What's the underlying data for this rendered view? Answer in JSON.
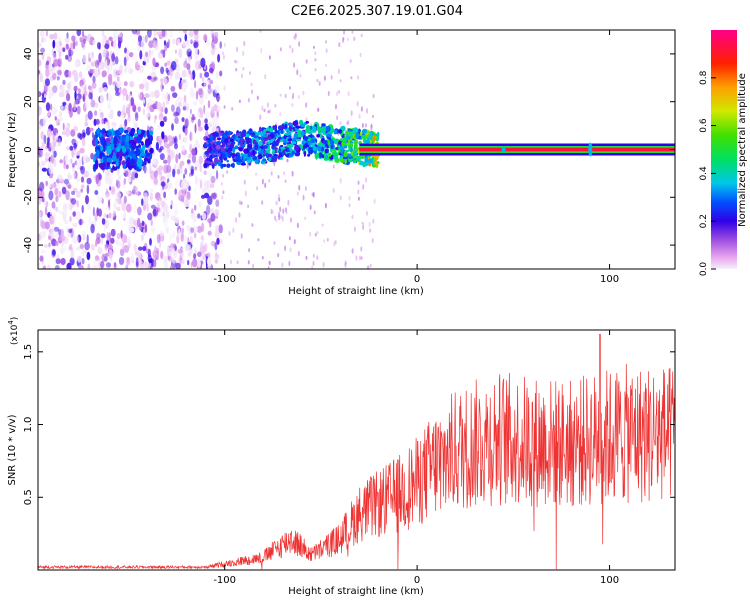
{
  "title": "C2E6.2025.307.19.01.G04",
  "chart_data": [
    {
      "type": "heatmap",
      "name": "spectrogram",
      "xlabel": "Height of straight line (km)",
      "ylabel": "Frequency (Hz)",
      "xlim": [
        -197,
        134
      ],
      "ylim": [
        -50,
        50
      ],
      "xticks": [
        -100,
        0,
        100
      ],
      "yticks": [
        -40,
        -20,
        0,
        20,
        40
      ],
      "colorbar": {
        "label": "Normalized spectral amplitude",
        "range": [
          0,
          1
        ],
        "ticks": [
          0.0,
          0.2,
          0.4,
          0.6,
          0.8
        ]
      },
      "signal": {
        "description_points": [
          {
            "x": -160,
            "y": 0,
            "amp": 0.2
          },
          {
            "x": -100,
            "y": 0,
            "amp": 0.35
          },
          {
            "x": -80,
            "y": 1.5,
            "amp": 0.45
          },
          {
            "x": -60,
            "y": 5,
            "amp": 0.5
          },
          {
            "x": -40,
            "y": 2,
            "amp": 0.6
          },
          {
            "x": -20,
            "y": 0,
            "amp": 0.95
          },
          {
            "x": 0,
            "y": 0,
            "amp": 0.95
          },
          {
            "x": 90,
            "y": 0,
            "amp": 0.95
          },
          {
            "x": 134,
            "y": 0,
            "amp": 0.95
          }
        ]
      }
    },
    {
      "type": "line",
      "name": "snr",
      "xlabel": "Height of straight line (km)",
      "ylabel": "SNR (10 * v/v)",
      "multiplier_label": "(x10",
      "multiplier_exp": "4",
      "multiplier_close": ")",
      "xlim": [
        -197,
        134
      ],
      "ylim": [
        0,
        1.65
      ],
      "xticks": [
        -100,
        0,
        100
      ],
      "yticks": [
        0.5,
        1.0,
        1.5
      ],
      "color": "#ee3333",
      "trend": [
        {
          "x": -197,
          "y": 0.02
        },
        {
          "x": -110,
          "y": 0.02
        },
        {
          "x": -100,
          "y": 0.05
        },
        {
          "x": -80,
          "y": 0.1
        },
        {
          "x": -65,
          "y": 0.25
        },
        {
          "x": -55,
          "y": 0.12
        },
        {
          "x": -40,
          "y": 0.25
        },
        {
          "x": -30,
          "y": 0.45
        },
        {
          "x": -10,
          "y": 0.6
        },
        {
          "x": 0,
          "y": 0.7
        },
        {
          "x": 10,
          "y": 0.85
        },
        {
          "x": 20,
          "y": 0.95
        },
        {
          "x": 40,
          "y": 1.05
        },
        {
          "x": 60,
          "y": 1.02
        },
        {
          "x": 80,
          "y": 1.0
        },
        {
          "x": 95,
          "y": 1.05
        },
        {
          "x": 110,
          "y": 1.08
        },
        {
          "x": 134,
          "y": 1.08
        }
      ]
    }
  ]
}
